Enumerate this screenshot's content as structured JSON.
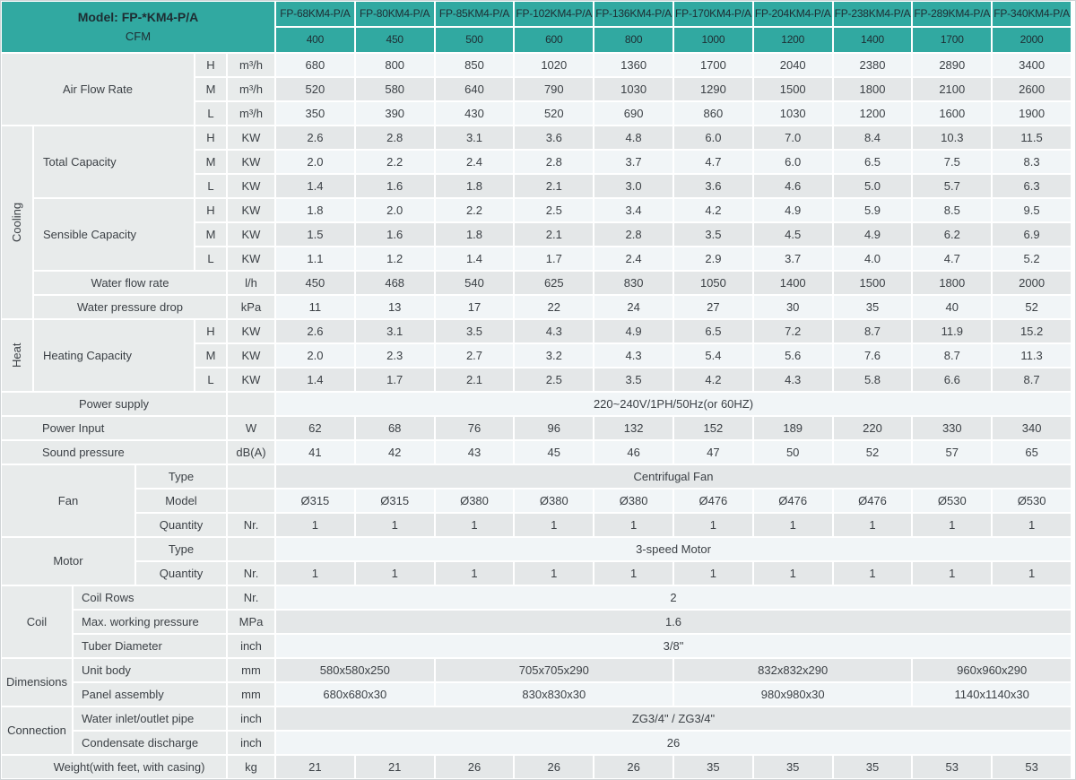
{
  "title": "Fan coil unit specification table",
  "colors": {
    "header_teal": "#31a9a1",
    "header_text": "#1e2d33",
    "label_bg": "#e8ebeb",
    "row_light": "#f1f5f7",
    "row_gray": "#e4e7e8",
    "gridline": "#ffffff",
    "body_text": "#3c4146"
  },
  "table": {
    "left_cells": [
      [
        1,
        1,
        2,
        6,
        "Model: FP-*KM4-P/A\nCFM",
        "hm",
        "model-cfm-header"
      ],
      [
        3,
        1,
        3,
        4,
        "Air Flow Rate",
        "l",
        "air-flow-rate-label"
      ],
      [
        3,
        5,
        1,
        1,
        "H",
        "l",
        "air-flow-h-level"
      ],
      [
        3,
        6,
        1,
        1,
        "m³/h",
        "l",
        "air-flow-h-unit"
      ],
      [
        4,
        5,
        1,
        1,
        "M",
        "l",
        "air-flow-m-level"
      ],
      [
        4,
        6,
        1,
        1,
        "m³/h",
        "l",
        "air-flow-m-unit"
      ],
      [
        5,
        5,
        1,
        1,
        "L",
        "l",
        "air-flow-l-level"
      ],
      [
        5,
        6,
        1,
        1,
        "m³/h",
        "l",
        "air-flow-l-unit"
      ],
      [
        6,
        1,
        8,
        1,
        "Cooling",
        "v",
        "cooling-group-label"
      ],
      [
        6,
        2,
        3,
        3,
        "Total Capacity",
        "ll",
        "total-capacity-label"
      ],
      [
        6,
        5,
        1,
        1,
        "H",
        "l",
        "total-capacity-h-level"
      ],
      [
        6,
        6,
        1,
        1,
        "KW",
        "l",
        "total-capacity-h-unit"
      ],
      [
        7,
        5,
        1,
        1,
        "M",
        "l",
        "total-capacity-m-level"
      ],
      [
        7,
        6,
        1,
        1,
        "KW",
        "l",
        "total-capacity-m-unit"
      ],
      [
        8,
        5,
        1,
        1,
        "L",
        "l",
        "total-capacity-l-level"
      ],
      [
        8,
        6,
        1,
        1,
        "KW",
        "l",
        "total-capacity-l-unit"
      ],
      [
        9,
        2,
        3,
        3,
        "Sensible Capacity",
        "ll",
        "sensible-capacity-label"
      ],
      [
        9,
        5,
        1,
        1,
        "H",
        "l",
        "sensible-capacity-h-level"
      ],
      [
        9,
        6,
        1,
        1,
        "KW",
        "l",
        "sensible-capacity-h-unit"
      ],
      [
        10,
        5,
        1,
        1,
        "M",
        "l",
        "sensible-capacity-m-level"
      ],
      [
        10,
        6,
        1,
        1,
        "KW",
        "l",
        "sensible-capacity-m-unit"
      ],
      [
        11,
        5,
        1,
        1,
        "L",
        "l",
        "sensible-capacity-l-level"
      ],
      [
        11,
        6,
        1,
        1,
        "KW",
        "l",
        "sensible-capacity-l-unit"
      ],
      [
        12,
        2,
        1,
        4,
        "Water flow rate",
        "l",
        "water-flow-rate-label"
      ],
      [
        12,
        6,
        1,
        1,
        "l/h",
        "l",
        "water-flow-rate-unit"
      ],
      [
        13,
        2,
        1,
        4,
        "Water pressure drop",
        "l",
        "water-pressure-drop-label"
      ],
      [
        13,
        6,
        1,
        1,
        "kPa",
        "l",
        "water-pressure-drop-unit"
      ],
      [
        14,
        1,
        3,
        1,
        "Heat",
        "v",
        "heat-group-label"
      ],
      [
        14,
        2,
        3,
        3,
        "Heating Capacity",
        "ll",
        "heating-capacity-label"
      ],
      [
        14,
        5,
        1,
        1,
        "H",
        "l",
        "heating-capacity-h-level"
      ],
      [
        14,
        6,
        1,
        1,
        "KW",
        "l",
        "heating-capacity-h-unit"
      ],
      [
        15,
        5,
        1,
        1,
        "M",
        "l",
        "heating-capacity-m-level"
      ],
      [
        15,
        6,
        1,
        1,
        "KW",
        "l",
        "heating-capacity-m-unit"
      ],
      [
        16,
        5,
        1,
        1,
        "L",
        "l",
        "heating-capacity-l-level"
      ],
      [
        16,
        6,
        1,
        1,
        "KW",
        "l",
        "heating-capacity-l-unit"
      ],
      [
        17,
        1,
        1,
        5,
        "Power supply",
        "l",
        "power-supply-label"
      ],
      [
        17,
        6,
        1,
        1,
        "",
        "l",
        "power-supply-unit-empty"
      ],
      [
        18,
        1,
        1,
        5,
        "Power Input",
        "lp",
        "power-input-label"
      ],
      [
        18,
        6,
        1,
        1,
        "W",
        "l",
        "power-input-unit"
      ],
      [
        19,
        1,
        1,
        5,
        "Sound pressure",
        "lp",
        "sound-pressure-label"
      ],
      [
        19,
        6,
        1,
        1,
        "dB(A)",
        "l",
        "sound-pressure-unit"
      ],
      [
        20,
        1,
        3,
        3,
        "Fan",
        "l",
        "fan-group-label"
      ],
      [
        20,
        4,
        1,
        2,
        "Type",
        "l",
        "fan-type-label"
      ],
      [
        20,
        6,
        1,
        1,
        "",
        "l",
        "fan-type-unit-empty"
      ],
      [
        21,
        4,
        1,
        2,
        "Model",
        "l",
        "fan-model-label"
      ],
      [
        21,
        6,
        1,
        1,
        "",
        "l",
        "fan-model-unit-empty"
      ],
      [
        22,
        4,
        1,
        2,
        "Quantity",
        "l",
        "fan-quantity-label"
      ],
      [
        22,
        6,
        1,
        1,
        "Nr.",
        "l",
        "fan-quantity-unit"
      ],
      [
        23,
        1,
        2,
        3,
        "Motor",
        "l",
        "motor-group-label"
      ],
      [
        23,
        4,
        1,
        2,
        "Type",
        "l",
        "motor-type-label"
      ],
      [
        23,
        6,
        1,
        1,
        "",
        "l",
        "motor-type-unit-empty"
      ],
      [
        24,
        4,
        1,
        2,
        "Quantity",
        "l",
        "motor-quantity-label"
      ],
      [
        24,
        6,
        1,
        1,
        "Nr.",
        "l",
        "motor-quantity-unit"
      ],
      [
        25,
        1,
        3,
        2,
        "Coil",
        "l",
        "coil-group-label"
      ],
      [
        25,
        3,
        1,
        3,
        "Coil Rows",
        "ll2",
        "coil-rows-label"
      ],
      [
        25,
        6,
        1,
        1,
        "Nr.",
        "l",
        "coil-rows-unit"
      ],
      [
        26,
        3,
        1,
        3,
        "Max. working pressure",
        "ll2",
        "max-working-pressure-label"
      ],
      [
        26,
        6,
        1,
        1,
        "MPa",
        "l",
        "max-working-pressure-unit"
      ],
      [
        27,
        3,
        1,
        3,
        "Tuber Diameter",
        "ll2",
        "tuber-diameter-label"
      ],
      [
        27,
        6,
        1,
        1,
        "inch",
        "l",
        "tuber-diameter-unit"
      ],
      [
        28,
        1,
        2,
        2,
        "Dimensions",
        "l",
        "dimensions-group-label"
      ],
      [
        28,
        3,
        1,
        3,
        "Unit body",
        "ll2",
        "unit-body-label"
      ],
      [
        28,
        6,
        1,
        1,
        "mm",
        "l",
        "unit-body-unit"
      ],
      [
        29,
        3,
        1,
        3,
        "Panel assembly",
        "ll2",
        "panel-assembly-label"
      ],
      [
        29,
        6,
        1,
        1,
        "mm",
        "l",
        "panel-assembly-unit"
      ],
      [
        30,
        1,
        2,
        2,
        "Connection",
        "l",
        "connection-group-label"
      ],
      [
        30,
        3,
        1,
        3,
        "Water inlet/outlet pipe",
        "ll2",
        "water-inlet-outlet-pipe-label"
      ],
      [
        30,
        6,
        1,
        1,
        "inch",
        "l",
        "water-inlet-outlet-pipe-unit"
      ],
      [
        31,
        3,
        1,
        3,
        "Condensate discharge",
        "ll2",
        "condensate-discharge-label"
      ],
      [
        31,
        6,
        1,
        1,
        "inch",
        "l",
        "condensate-discharge-unit"
      ],
      [
        32,
        1,
        1,
        5,
        "Weight(with feet, with casing)",
        "lw",
        "weight-label"
      ],
      [
        32,
        6,
        1,
        1,
        "kg",
        "l",
        "weight-unit"
      ]
    ],
    "value_rows": [
      {
        "r": 1,
        "cls": "h",
        "name": "model-name",
        "vals": [
          "FP-68KM4-P/A",
          "FP-80KM4-P/A",
          "FP-85KM4-P/A",
          "FP-102KM4-P/A",
          "FP-136KM4-P/A",
          "FP-170KM4-P/A",
          "FP-204KM4-P/A",
          "FP-238KM4-P/A",
          "FP-289KM4-P/A",
          "FP-340KM4-P/A"
        ]
      },
      {
        "r": 2,
        "cls": "h",
        "name": "cfm-value",
        "vals": [
          "400",
          "450",
          "500",
          "600",
          "800",
          "1000",
          "1200",
          "1400",
          "1700",
          "2000"
        ]
      },
      {
        "r": 3,
        "shade": "L",
        "name": "air-flow-h",
        "vals": [
          "680",
          "800",
          "850",
          "1020",
          "1360",
          "1700",
          "2040",
          "2380",
          "2890",
          "3400"
        ]
      },
      {
        "r": 4,
        "shade": "G",
        "name": "air-flow-m",
        "vals": [
          "520",
          "580",
          "640",
          "790",
          "1030",
          "1290",
          "1500",
          "1800",
          "2100",
          "2600"
        ]
      },
      {
        "r": 5,
        "shade": "L",
        "name": "air-flow-l",
        "vals": [
          "350",
          "390",
          "430",
          "520",
          "690",
          "860",
          "1030",
          "1200",
          "1600",
          "1900"
        ]
      },
      {
        "r": 6,
        "shade": "G",
        "name": "total-capacity-h",
        "vals": [
          "2.6",
          "2.8",
          "3.1",
          "3.6",
          "4.8",
          "6.0",
          "7.0",
          "8.4",
          "10.3",
          "11.5"
        ]
      },
      {
        "r": 7,
        "shade": "L",
        "name": "total-capacity-m",
        "vals": [
          "2.0",
          "2.2",
          "2.4",
          "2.8",
          "3.7",
          "4.7",
          "6.0",
          "6.5",
          "7.5",
          "8.3"
        ]
      },
      {
        "r": 8,
        "shade": "G",
        "name": "total-capacity-l",
        "vals": [
          "1.4",
          "1.6",
          "1.8",
          "2.1",
          "3.0",
          "3.6",
          "4.6",
          "5.0",
          "5.7",
          "6.3"
        ]
      },
      {
        "r": 9,
        "shade": "L",
        "name": "sensible-capacity-h",
        "vals": [
          "1.8",
          "2.0",
          "2.2",
          "2.5",
          "3.4",
          "4.2",
          "4.9",
          "5.9",
          "8.5",
          "9.5"
        ]
      },
      {
        "r": 10,
        "shade": "G",
        "name": "sensible-capacity-m",
        "vals": [
          "1.5",
          "1.6",
          "1.8",
          "2.1",
          "2.8",
          "3.5",
          "4.5",
          "4.9",
          "6.2",
          "6.9"
        ]
      },
      {
        "r": 11,
        "shade": "L",
        "name": "sensible-capacity-l",
        "vals": [
          "1.1",
          "1.2",
          "1.4",
          "1.7",
          "2.4",
          "2.9",
          "3.7",
          "4.0",
          "4.7",
          "5.2"
        ]
      },
      {
        "r": 12,
        "shade": "G",
        "name": "water-flow-rate",
        "vals": [
          "450",
          "468",
          "540",
          "625",
          "830",
          "1050",
          "1400",
          "1500",
          "1800",
          "2000"
        ]
      },
      {
        "r": 13,
        "shade": "L",
        "name": "water-pressure-drop",
        "vals": [
          "11",
          "13",
          "17",
          "22",
          "24",
          "27",
          "30",
          "35",
          "40",
          "52"
        ]
      },
      {
        "r": 14,
        "shade": "G",
        "name": "heating-capacity-h",
        "vals": [
          "2.6",
          "3.1",
          "3.5",
          "4.3",
          "4.9",
          "6.5",
          "7.2",
          "8.7",
          "11.9",
          "15.2"
        ]
      },
      {
        "r": 15,
        "shade": "L",
        "name": "heating-capacity-m",
        "vals": [
          "2.0",
          "2.3",
          "2.7",
          "3.2",
          "4.3",
          "5.4",
          "5.6",
          "7.6",
          "8.7",
          "11.3"
        ]
      },
      {
        "r": 16,
        "shade": "G",
        "name": "heating-capacity-l",
        "vals": [
          "1.4",
          "1.7",
          "2.1",
          "2.5",
          "3.5",
          "4.2",
          "4.3",
          "5.8",
          "6.6",
          "8.7"
        ]
      },
      {
        "r": 17,
        "shade": "L",
        "name": "power-supply",
        "spans": [
          {
            "t": "220~240V/1PH/50Hz(or 60HZ)",
            "cs": 10
          }
        ]
      },
      {
        "r": 18,
        "shade": "G",
        "name": "power-input",
        "vals": [
          "62",
          "68",
          "76",
          "96",
          "132",
          "152",
          "189",
          "220",
          "330",
          "340"
        ]
      },
      {
        "r": 19,
        "shade": "L",
        "name": "sound-pressure",
        "vals": [
          "41",
          "42",
          "43",
          "45",
          "46",
          "47",
          "50",
          "52",
          "57",
          "65"
        ]
      },
      {
        "r": 20,
        "shade": "G",
        "name": "fan-type",
        "spans": [
          {
            "t": "Centrifugal Fan",
            "cs": 10
          }
        ]
      },
      {
        "r": 21,
        "shade": "L",
        "name": "fan-model",
        "vals": [
          "Ø315",
          "Ø315",
          "Ø380",
          "Ø380",
          "Ø380",
          "Ø476",
          "Ø476",
          "Ø476",
          "Ø530",
          "Ø530"
        ]
      },
      {
        "r": 22,
        "shade": "G",
        "name": "fan-quantity",
        "vals": [
          "1",
          "1",
          "1",
          "1",
          "1",
          "1",
          "1",
          "1",
          "1",
          "1"
        ]
      },
      {
        "r": 23,
        "shade": "L",
        "name": "motor-type",
        "spans": [
          {
            "t": "3-speed Motor",
            "cs": 10
          }
        ]
      },
      {
        "r": 24,
        "shade": "G",
        "name": "motor-quantity",
        "vals": [
          "1",
          "1",
          "1",
          "1",
          "1",
          "1",
          "1",
          "1",
          "1",
          "1"
        ]
      },
      {
        "r": 25,
        "shade": "L",
        "name": "coil-rows",
        "spans": [
          {
            "t": "2",
            "cs": 10
          }
        ]
      },
      {
        "r": 26,
        "shade": "G",
        "name": "max-working-pressure",
        "spans": [
          {
            "t": "1.6",
            "cs": 10
          }
        ]
      },
      {
        "r": 27,
        "shade": "L",
        "name": "tuber-diameter",
        "spans": [
          {
            "t": "3/8\"",
            "cs": 10
          }
        ]
      },
      {
        "r": 28,
        "shade": "G",
        "name": "unit-body",
        "spans": [
          {
            "t": "580x580x250",
            "cs": 2
          },
          {
            "t": "705x705x290",
            "cs": 3
          },
          {
            "t": "832x832x290",
            "cs": 3
          },
          {
            "t": "960x960x290",
            "cs": 2
          }
        ]
      },
      {
        "r": 29,
        "shade": "L",
        "name": "panel-assembly",
        "spans": [
          {
            "t": "680x680x30",
            "cs": 2
          },
          {
            "t": "830x830x30",
            "cs": 3
          },
          {
            "t": "980x980x30",
            "cs": 3
          },
          {
            "t": "1140x1140x30",
            "cs": 2
          }
        ]
      },
      {
        "r": 30,
        "shade": "G",
        "name": "water-inlet-outlet-pipe",
        "spans": [
          {
            "t": "ZG3/4\" / ZG3/4\"",
            "cs": 10
          }
        ]
      },
      {
        "r": 31,
        "shade": "L",
        "name": "condensate-discharge",
        "spans": [
          {
            "t": "26",
            "cs": 10
          }
        ]
      },
      {
        "r": 32,
        "shade": "G",
        "name": "weight",
        "vals": [
          "21",
          "21",
          "26",
          "26",
          "26",
          "35",
          "35",
          "35",
          "53",
          "53"
        ]
      }
    ]
  }
}
